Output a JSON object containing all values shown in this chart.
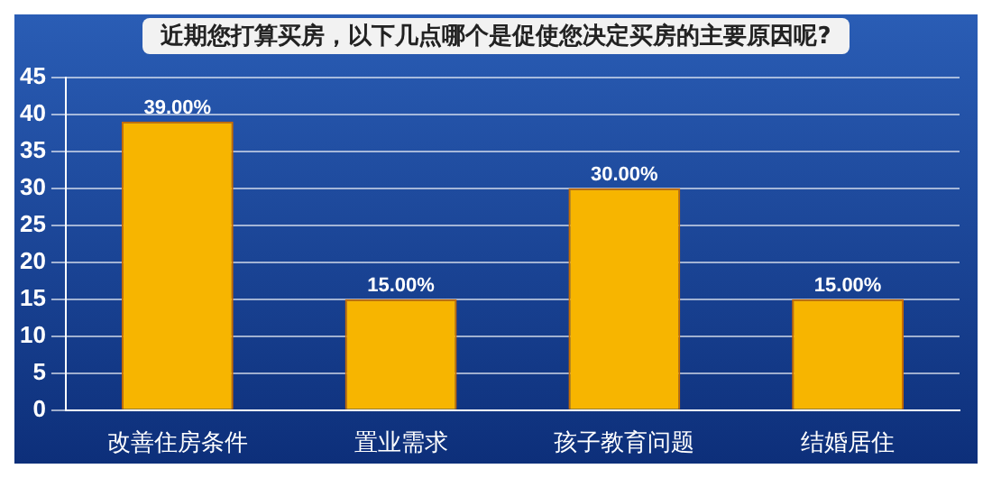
{
  "chart_data": {
    "type": "bar",
    "title": "近期您打算买房，以下几点哪个是促使您决定买房的主要原因呢?",
    "categories": [
      "改善住房条件",
      "置业需求",
      "孩子教育问题",
      "结婚居住"
    ],
    "values": [
      39,
      15,
      30,
      15
    ],
    "value_labels": [
      "39.00%",
      "15.00%",
      "30.00%",
      "15.00%"
    ],
    "color": "#f7b500",
    "ylim": [
      0,
      45
    ],
    "yticks": [
      0,
      5,
      10,
      15,
      20,
      25,
      30,
      35,
      40,
      45
    ],
    "grid": "y",
    "legend": false
  }
}
